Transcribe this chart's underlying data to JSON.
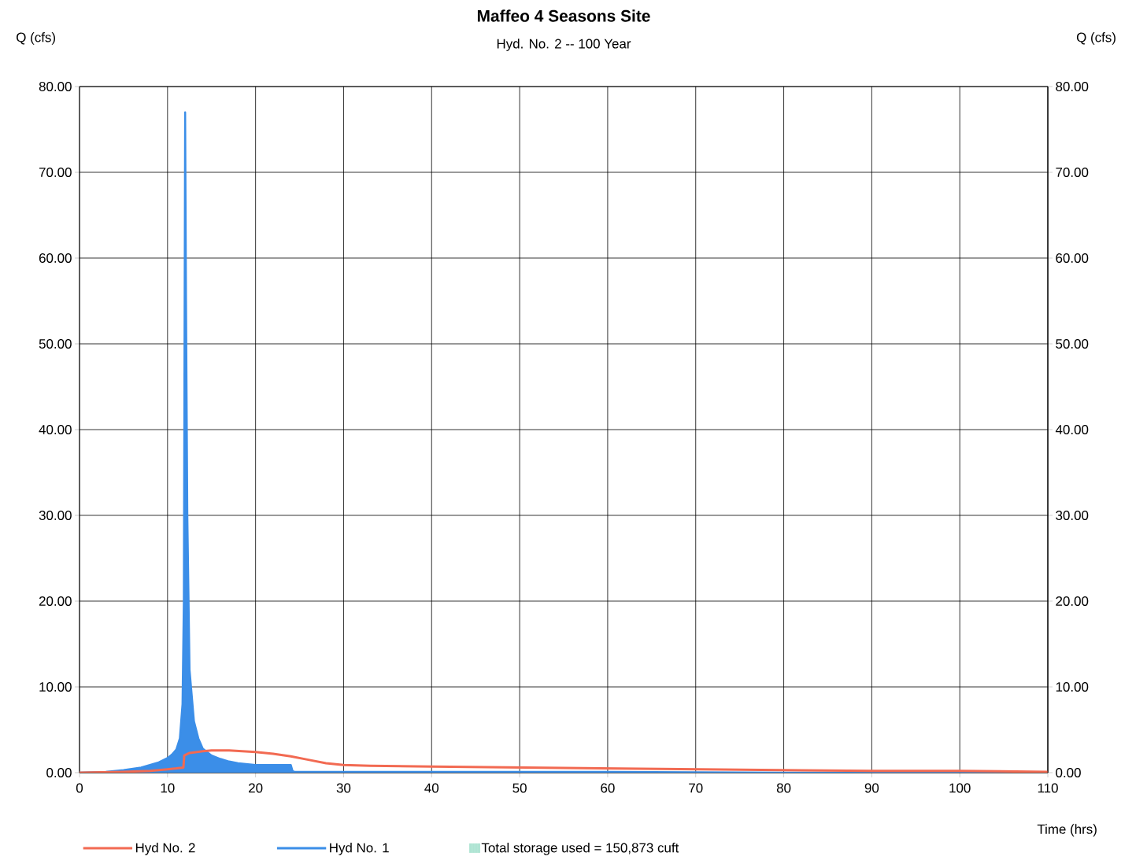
{
  "chart_data": {
    "type": "line",
    "title": "Maffeo  4 Seasons Site",
    "subtitle": "Hyd. No. 2 -- 100 Year",
    "xlabel": "Time (hrs)",
    "ylabel": "Q (cfs)",
    "y2label": "Q (cfs)",
    "annotations": [
      "Total storage used = 150,873 cuft"
    ],
    "xlim": [
      0,
      110
    ],
    "xticks": [
      0,
      10,
      20,
      30,
      40,
      50,
      60,
      70,
      80,
      90,
      100,
      110
    ],
    "ylim": [
      0,
      80
    ],
    "yticks": [
      {
        "value": 0,
        "label": "0.00"
      },
      {
        "value": 10,
        "label": "10.00"
      },
      {
        "value": 20,
        "label": "20.00"
      },
      {
        "value": 30,
        "label": "30.00"
      },
      {
        "value": 40,
        "label": "40.00"
      },
      {
        "value": 50,
        "label": "50.00"
      },
      {
        "value": 60,
        "label": "60.00"
      },
      {
        "value": 70,
        "label": "70.00"
      },
      {
        "value": 80,
        "label": "80.00"
      }
    ],
    "y2lim": [
      0,
      80
    ],
    "y2ticks": [
      {
        "value": 0,
        "label": "0.00"
      },
      {
        "value": 10,
        "label": "10.00"
      },
      {
        "value": 20,
        "label": "20.00"
      },
      {
        "value": 30,
        "label": "30.00"
      },
      {
        "value": 40,
        "label": "40.00"
      },
      {
        "value": 50,
        "label": "50.00"
      },
      {
        "value": 60,
        "label": "60.00"
      },
      {
        "value": 70,
        "label": "70.00"
      },
      {
        "value": 80,
        "label": "80.00"
      }
    ],
    "grid": true,
    "legend": "bottom",
    "series": [
      {
        "name": "Hyd No. 2",
        "color": "#f26a52",
        "x": [
          0,
          5,
          8,
          10,
          11,
          11.8,
          11.9,
          12.5,
          14,
          15,
          17,
          20,
          22,
          24,
          26,
          28,
          30,
          33,
          40,
          50,
          60,
          70,
          80,
          90,
          100,
          110
        ],
        "values": [
          0,
          0.1,
          0.2,
          0.4,
          0.5,
          0.6,
          2.0,
          2.3,
          2.5,
          2.6,
          2.6,
          2.4,
          2.2,
          1.9,
          1.5,
          1.1,
          0.9,
          0.8,
          0.7,
          0.6,
          0.5,
          0.4,
          0.3,
          0.2,
          0.2,
          0.1
        ]
      },
      {
        "name": "Hyd No. 1",
        "type": "area",
        "color": "#3b8ee8",
        "x": [
          0,
          3,
          5,
          7,
          8,
          9,
          10,
          10.5,
          11,
          11.4,
          11.7,
          11.85,
          12,
          12.1,
          12.25,
          12.5,
          13,
          13.5,
          14,
          15,
          16,
          17,
          18,
          20,
          22,
          24,
          24.2,
          24.4,
          30,
          40,
          60,
          80,
          110
        ],
        "values": [
          0,
          0.1,
          0.3,
          0.6,
          0.9,
          1.2,
          1.7,
          2.1,
          2.7,
          4,
          8,
          20,
          77,
          55,
          30,
          12,
          6,
          4,
          2.8,
          2.0,
          1.6,
          1.3,
          1.1,
          0.9,
          0.9,
          0.9,
          0.2,
          0.1,
          0.1,
          0.1,
          0.1,
          0,
          0
        ]
      }
    ]
  }
}
